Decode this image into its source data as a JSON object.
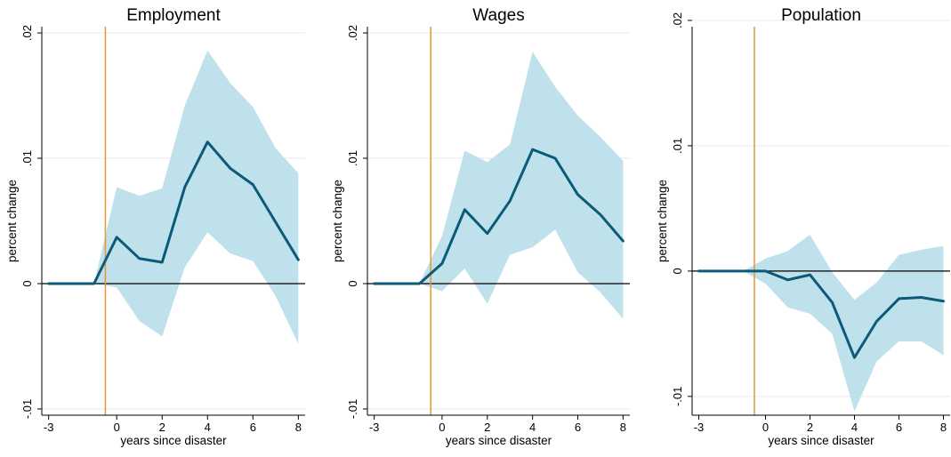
{
  "figure": {
    "background": "#ffffff",
    "colors": {
      "line": "#0b5a78",
      "band": "#bfe1ec",
      "event_marker": "#e8962e",
      "zero_line": "#000000",
      "grid": "#eaeaea"
    }
  },
  "chart_data": [
    {
      "type": "line",
      "title": "Employment",
      "xlabel": "years since disaster",
      "ylabel": "percent change",
      "xlim": [
        -3.3,
        8.3
      ],
      "ylim": [
        -0.0105,
        0.0205
      ],
      "xticks": [
        -3,
        0,
        2,
        4,
        6,
        8
      ],
      "xtick_labels": [
        "-3",
        "0",
        "2",
        "4",
        "6",
        "8"
      ],
      "yticks": [
        -0.01,
        0,
        0.01,
        0.02
      ],
      "ytick_labels": [
        "-.01",
        "0",
        ".01",
        ".02"
      ],
      "event_marker_x": -0.5,
      "zero_line": 0,
      "grid": true,
      "x": [
        -3,
        -2,
        -1,
        0,
        1,
        2,
        3,
        4,
        5,
        6,
        7,
        8
      ],
      "series": [
        {
          "values": [
            0,
            0,
            0,
            0.0037,
            0.002,
            0.0017,
            0.0077,
            0.0113,
            0.0092,
            0.0079,
            0.0049,
            0.0019
          ],
          "lower": [
            0,
            0,
            0,
            -0.0003,
            -0.003,
            -0.0042,
            0.0013,
            0.0041,
            0.0024,
            0.0018,
            -0.001,
            -0.0048
          ],
          "upper": [
            0,
            0,
            0,
            0.0077,
            0.007,
            0.0076,
            0.0142,
            0.0186,
            0.016,
            0.0141,
            0.0108,
            0.0088
          ]
        }
      ]
    },
    {
      "type": "line",
      "title": "Wages",
      "xlabel": "years since disaster",
      "ylabel": "percent change",
      "xlim": [
        -3.3,
        8.3
      ],
      "ylim": [
        -0.0105,
        0.0205
      ],
      "xticks": [
        -3,
        0,
        2,
        4,
        6,
        8
      ],
      "xtick_labels": [
        "-3",
        "0",
        "2",
        "4",
        "6",
        "8"
      ],
      "yticks": [
        -0.01,
        0,
        0.01,
        0.02
      ],
      "ytick_labels": [
        "-.01",
        "0",
        ".01",
        ".02"
      ],
      "event_marker_x": -0.5,
      "zero_line": 0,
      "grid": true,
      "x": [
        -3,
        -2,
        -1,
        0,
        1,
        2,
        3,
        4,
        5,
        6,
        7,
        8
      ],
      "series": [
        {
          "values": [
            0,
            0,
            0,
            0.0016,
            0.0059,
            0.004,
            0.0066,
            0.0107,
            0.01,
            0.0071,
            0.0055,
            0.0034
          ],
          "lower": [
            0,
            0,
            0,
            -0.0006,
            0.0012,
            -0.0016,
            0.0023,
            0.0029,
            0.0043,
            0.0009,
            -0.0007,
            -0.0028
          ],
          "upper": [
            0,
            0,
            0,
            0.0038,
            0.0106,
            0.0097,
            0.0111,
            0.0185,
            0.0157,
            0.0134,
            0.0117,
            0.0098
          ]
        }
      ]
    },
    {
      "type": "line",
      "title": "Population",
      "xlabel": "years since disaster",
      "ylabel": "percent change",
      "xlim": [
        -3.3,
        8.3
      ],
      "ylim": [
        -0.0115,
        0.0195
      ],
      "xticks": [
        -3,
        0,
        2,
        4,
        6,
        8
      ],
      "xtick_labels": [
        "-3",
        "0",
        "2",
        "4",
        "6",
        "8"
      ],
      "yticks": [
        -0.01,
        0,
        0.01,
        0.02
      ],
      "ytick_labels": [
        "-.01",
        "0",
        ".01",
        ".02"
      ],
      "event_marker_x": -0.5,
      "zero_line": 0,
      "grid": true,
      "x": [
        -3,
        -2,
        -1,
        0,
        1,
        2,
        3,
        4,
        5,
        6,
        7,
        8
      ],
      "series": [
        {
          "values": [
            0,
            0,
            0,
            0,
            -0.0007,
            -0.0003,
            -0.0025,
            -0.0069,
            -0.004,
            -0.0022,
            -0.0021,
            -0.0024
          ],
          "lower": [
            0,
            0,
            0,
            -0.001,
            -0.0029,
            -0.0034,
            -0.005,
            -0.0112,
            -0.0072,
            -0.0056,
            -0.0056,
            -0.0067
          ],
          "upper": [
            0,
            0,
            0,
            0.001,
            0.0016,
            0.0029,
            -0.0001,
            -0.0023,
            -0.0009,
            0.0013,
            0.0017,
            0.002
          ]
        }
      ]
    }
  ]
}
